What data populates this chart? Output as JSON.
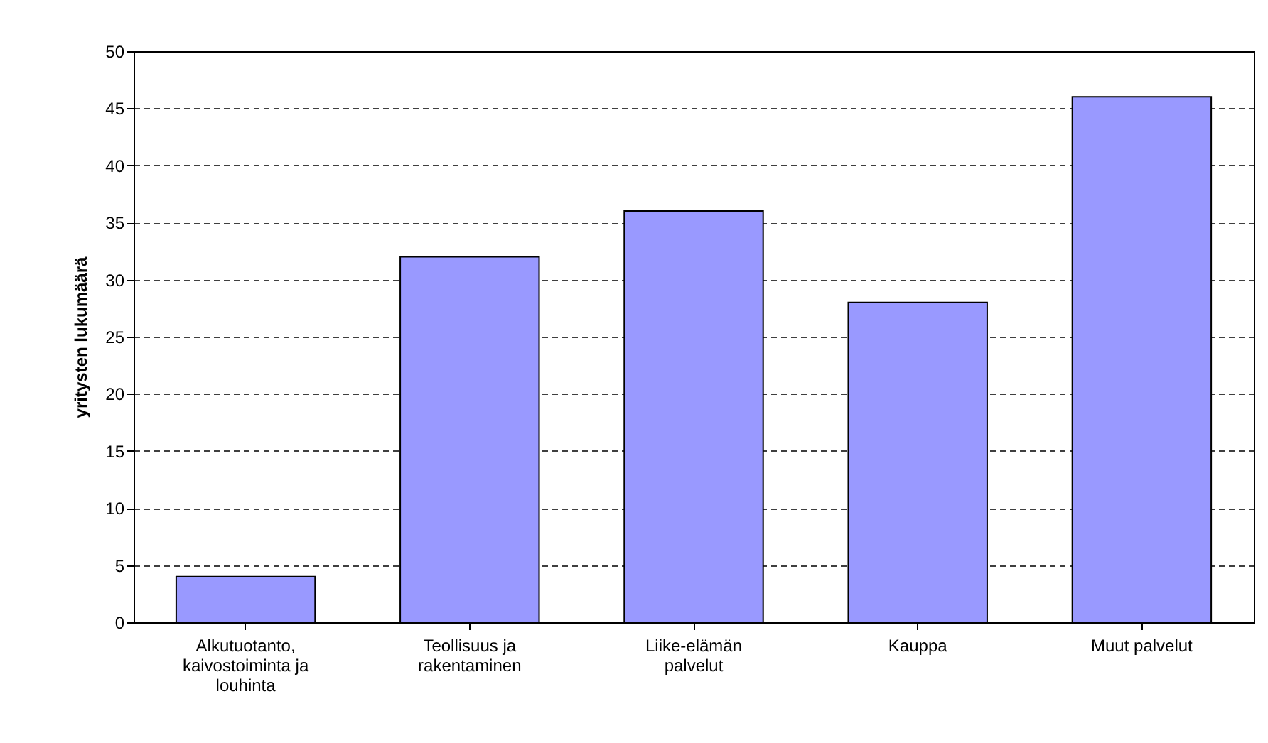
{
  "chart_data": {
    "type": "bar",
    "categories": [
      "Alkutuotanto,\nkaivostoiminta ja\nlouhinta",
      "Teollisuus ja\nrakentaminen",
      "Liike-elämän\npalvelut",
      "Kauppa",
      "Muut palvelut"
    ],
    "values": [
      4,
      32,
      36,
      28,
      46
    ],
    "color": "#9999ff",
    "ylabel": "yritysten lukumäärä",
    "ylim": [
      0,
      50
    ],
    "yticks": [
      0,
      5,
      10,
      15,
      20,
      25,
      30,
      35,
      40,
      45,
      50
    ],
    "grid": "y"
  }
}
